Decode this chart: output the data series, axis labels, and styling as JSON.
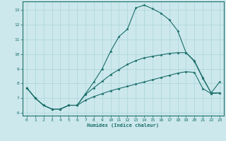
{
  "xlabel": "Humidex (Indice chaleur)",
  "bg_color": "#cce8ec",
  "line_color": "#1a6e6a",
  "grid_color": "#aad4d8",
  "xlim": [
    -0.5,
    23.5
  ],
  "ylim": [
    5.8,
    13.6
  ],
  "xticks": [
    0,
    1,
    2,
    3,
    4,
    5,
    6,
    7,
    8,
    9,
    10,
    11,
    12,
    13,
    14,
    15,
    16,
    17,
    18,
    19,
    20,
    21,
    22,
    23
  ],
  "yticks": [
    6,
    7,
    8,
    9,
    10,
    11,
    12,
    13
  ],
  "curve1_x": [
    0,
    1,
    2,
    3,
    4,
    5,
    6,
    7,
    8,
    9,
    10,
    11,
    12,
    13,
    14,
    15,
    16,
    17,
    18,
    19,
    20,
    21,
    22,
    23
  ],
  "curve1_y": [
    7.7,
    7.0,
    6.5,
    6.25,
    6.25,
    6.5,
    6.5,
    7.3,
    8.1,
    9.0,
    10.2,
    11.2,
    11.7,
    13.15,
    13.35,
    13.1,
    12.8,
    12.35,
    11.6,
    10.1,
    9.5,
    8.35,
    7.35,
    8.1
  ],
  "curve2_x": [
    0,
    1,
    2,
    3,
    4,
    5,
    6,
    7,
    8,
    9,
    10,
    11,
    12,
    13,
    14,
    15,
    16,
    17,
    18,
    19,
    20,
    21,
    22,
    23
  ],
  "curve2_y": [
    7.7,
    7.0,
    6.5,
    6.25,
    6.25,
    6.5,
    6.5,
    7.25,
    7.7,
    8.15,
    8.6,
    8.95,
    9.3,
    9.55,
    9.75,
    9.85,
    9.95,
    10.05,
    10.1,
    10.1,
    9.55,
    8.4,
    7.35,
    7.35
  ],
  "curve3_x": [
    0,
    1,
    2,
    3,
    4,
    5,
    6,
    7,
    8,
    9,
    10,
    11,
    12,
    13,
    14,
    15,
    16,
    17,
    18,
    19,
    20,
    21,
    22,
    23
  ],
  "curve3_y": [
    7.7,
    7.0,
    6.5,
    6.25,
    6.25,
    6.5,
    6.5,
    6.85,
    7.1,
    7.3,
    7.5,
    7.65,
    7.8,
    7.95,
    8.1,
    8.25,
    8.4,
    8.55,
    8.7,
    8.8,
    8.75,
    7.65,
    7.3,
    7.35
  ]
}
